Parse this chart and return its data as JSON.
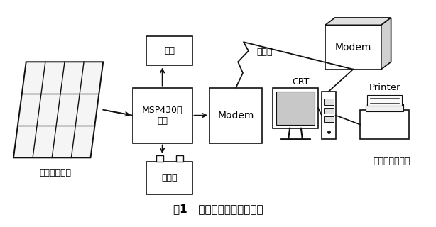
{
  "title": "图1   光伏电站远程监控系统",
  "bg_color": "#ffffff",
  "fig_width": 6.14,
  "fig_height": 3.2,
  "dpi": 100,
  "line_color": "#111111",
  "box_color": "#ffffff",
  "box_edge": "#111111",
  "labels": {
    "solar": "太阳电池阵列",
    "upper": "上位机监控系统",
    "phone_line": "电话线",
    "fuzai": "负载",
    "msp430": "MSP430控\n制器",
    "battery": "蓄电池",
    "modem_local": "Modem",
    "modem_remote": "Modem",
    "crt_label": "CRT",
    "printer_label": "Printer"
  }
}
